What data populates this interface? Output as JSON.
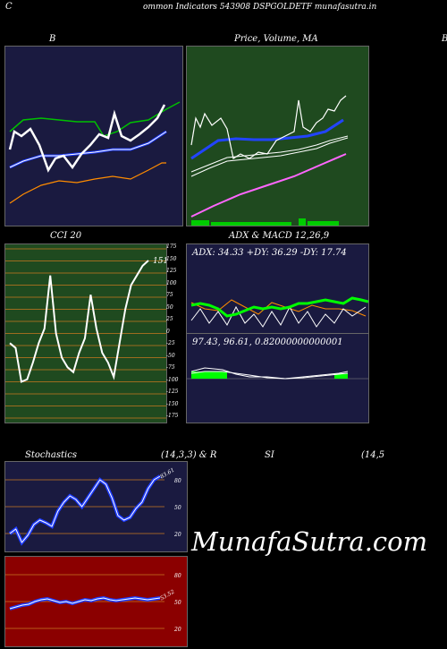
{
  "page": {
    "title": "ommon  Indicators 543908 DSPGOLDETF munafasutra.in",
    "left_letter": "C",
    "watermark": "MunafaSutra.com"
  },
  "bb": {
    "label": "B",
    "colors": {
      "bg": "#1a1a40",
      "price": "#ffffff",
      "upper": "#00c000",
      "mid": "#1e3cff",
      "lower": "#ff8c00"
    }
  },
  "price": {
    "label": "Price,  Volume,  MA",
    "overlap_label": "ce,  Volume",
    "right_letter": "B",
    "colors": {
      "bg": "#1f4a1f",
      "price": "#ffffff",
      "ma_fast": "#2244ff",
      "ma_slow": "#ffffff",
      "ma_long": "#ff66ff",
      "volume": "#00cc00"
    }
  },
  "cci": {
    "label": "CCI 20",
    "last_value": "151",
    "ticks": [
      "175",
      "150",
      "125",
      "100",
      "75",
      "50",
      "25",
      "0",
      "-25",
      "-50",
      "-75",
      "-100",
      "-125",
      "-150",
      "-175"
    ],
    "colors": {
      "bg": "#1f4a1f",
      "grid": "#c87820",
      "line": "#ffffff"
    }
  },
  "adx": {
    "label": "ADX  & MACD 12,26,9",
    "readout": "ADX: 34.33  +DY: 36.29  -DY: 17.74",
    "colors": {
      "bg": "#1a1a40",
      "adx": "#00ff00",
      "plus": "#ffffff",
      "minus": "#ff8c00"
    }
  },
  "macd": {
    "readout": "97.43,  96.61,  0.82000000000001",
    "colors": {
      "bg": "#1a1a40",
      "hist": "#00ff00",
      "line": "#ffffff"
    }
  },
  "stoch": {
    "label_left": "Stochastics",
    "label_mid": "(14,3,3) & R",
    "label_si": "SI",
    "label_right": "(14,5",
    "ticks": [
      "80",
      "50",
      "20"
    ],
    "last_value": "83.61",
    "colors": {
      "bg": "#1a1a40",
      "grid": "#c87820",
      "k": "#1e3cff",
      "d": "#ffffff"
    }
  },
  "rsi": {
    "ticks": [
      "80",
      "50",
      "20"
    ],
    "last_value": "53.52",
    "colors": {
      "bg": "#8b0000",
      "grid": "#c87820",
      "line": "#1e3cff"
    }
  },
  "chart_data": [
    {
      "type": "line",
      "panel": "bollinger",
      "series": [
        {
          "values": [
            195,
            185,
            180,
            190,
            195,
            175,
            155,
            160,
            170,
            178,
            175,
            170,
            168,
            160,
            140,
            145,
            150,
            135,
            140,
            150,
            165,
            170,
            160,
            150,
            140,
            145,
            130,
            120,
            118
          ]
        },
        {
          "values": [
            210,
            205,
            200,
            195,
            193,
            190,
            187,
            185,
            183,
            180,
            178,
            177,
            176,
            175,
            174,
            173,
            172,
            170,
            168,
            166,
            164,
            162,
            160,
            158,
            156,
            154,
            150,
            146,
            142
          ]
        }
      ]
    },
    {
      "type": "line",
      "panel": "price_ma",
      "series": [
        {
          "values": [
            150,
            120,
            100,
            95,
            110,
            130,
            135,
            140,
            132,
            128,
            120,
            118,
            112,
            108,
            95,
            80,
            90,
            85,
            70,
            80,
            65,
            60
          ]
        },
        {
          "values": [
            240,
            235,
            230,
            226,
            222,
            218,
            214,
            210,
            206,
            202,
            198,
            194,
            190,
            186,
            182,
            178,
            174,
            170,
            166,
            162,
            158,
            154
          ]
        }
      ]
    },
    {
      "type": "line",
      "panel": "cci",
      "values": [
        -20,
        -30,
        -100,
        -95,
        -60,
        -20,
        10,
        120,
        0,
        -50,
        -70,
        -80,
        -40,
        -10,
        80,
        10,
        -40,
        -60,
        -90,
        -20,
        50,
        100,
        120,
        140,
        151
      ],
      "ylim": [
        -175,
        175
      ]
    },
    {
      "type": "line",
      "panel": "adx",
      "series": [
        {
          "values": [
            75,
            72,
            74,
            78,
            60,
            55,
            58,
            62,
            60,
            58,
            63,
            65,
            70,
            72,
            71,
            74,
            78,
            72,
            68,
            72,
            74
          ]
        },
        {
          "values": [
            55,
            50,
            52,
            60,
            65,
            55,
            50,
            58,
            45,
            40,
            60,
            58,
            62,
            65,
            60,
            58,
            70,
            75,
            60,
            55,
            70
          ]
        },
        {
          "values": [
            70,
            65,
            68,
            55,
            50,
            60,
            65,
            55,
            70,
            72,
            58,
            50,
            52,
            55,
            60,
            62,
            50,
            45,
            55,
            60,
            48
          ]
        }
      ]
    },
    {
      "type": "line",
      "panel": "stochastics",
      "values": [
        20,
        25,
        10,
        18,
        30,
        35,
        32,
        28,
        45,
        55,
        62,
        58,
        50,
        60,
        70,
        80,
        75,
        60,
        40,
        35,
        38,
        48,
        55,
        70,
        80,
        84
      ],
      "ylim": [
        0,
        100
      ]
    },
    {
      "type": "line",
      "panel": "rsi",
      "values": [
        42,
        44,
        46,
        47,
        50,
        52,
        53,
        51,
        49,
        50,
        48,
        50,
        52,
        51,
        53,
        54,
        52,
        51,
        52,
        53,
        54,
        53,
        52,
        53,
        54
      ],
      "ylim": [
        0,
        100
      ]
    }
  ]
}
